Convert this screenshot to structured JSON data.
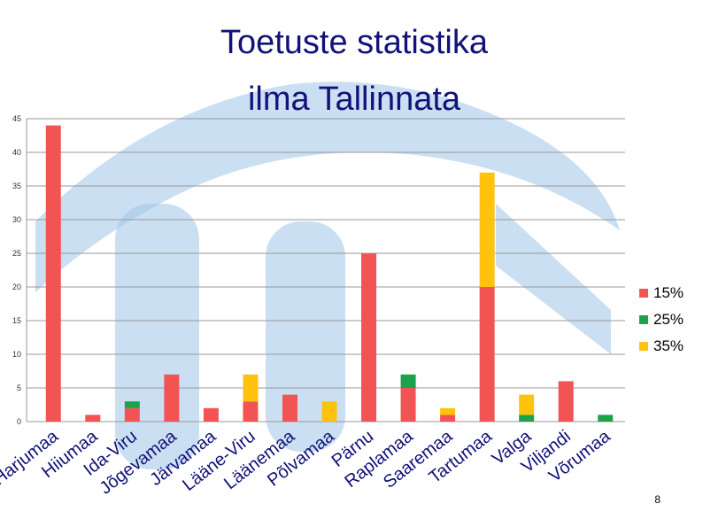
{
  "slide": {
    "title_line1": "Toetuste statistika",
    "title_line2": "ilma Tallinnata",
    "page_number": "8"
  },
  "colors": {
    "15%": "#f25454",
    "25%": "#1aa34a",
    "35%": "#ffc20e",
    "title": "#12127a",
    "watermark": "#9ec5e8"
  },
  "chart_data": {
    "type": "bar",
    "stacked": true,
    "title": "Toetuste statistika ilma Tallinnata",
    "categories": [
      "Harjumaa",
      "Hiiumaa",
      "Ida-Viru",
      "Jõgevamaa",
      "Järvamaa",
      "Lääne-Viru",
      "Läänemaa",
      "Põlvamaa",
      "Pärnu",
      "Raplamaa",
      "Saaremaa",
      "Tartumaa",
      "Valga",
      "Viljandi",
      "Võrumaa"
    ],
    "series": [
      {
        "name": "15%",
        "values": [
          44,
          1,
          2,
          7,
          2,
          3,
          4,
          0,
          25,
          5,
          1,
          20,
          0,
          6,
          0
        ]
      },
      {
        "name": "25%",
        "values": [
          0,
          0,
          1,
          0,
          0,
          0,
          0,
          0,
          0,
          2,
          0,
          0,
          1,
          0,
          1
        ]
      },
      {
        "name": "35%",
        "values": [
          0,
          0,
          0,
          0,
          0,
          4,
          0,
          3,
          0,
          0,
          1,
          17,
          3,
          0,
          0
        ]
      }
    ],
    "ylim": [
      0,
      45
    ],
    "yticks": [
      0,
      5,
      10,
      15,
      20,
      25,
      30,
      35,
      40,
      45
    ],
    "grid": true,
    "legend_position": "right"
  }
}
